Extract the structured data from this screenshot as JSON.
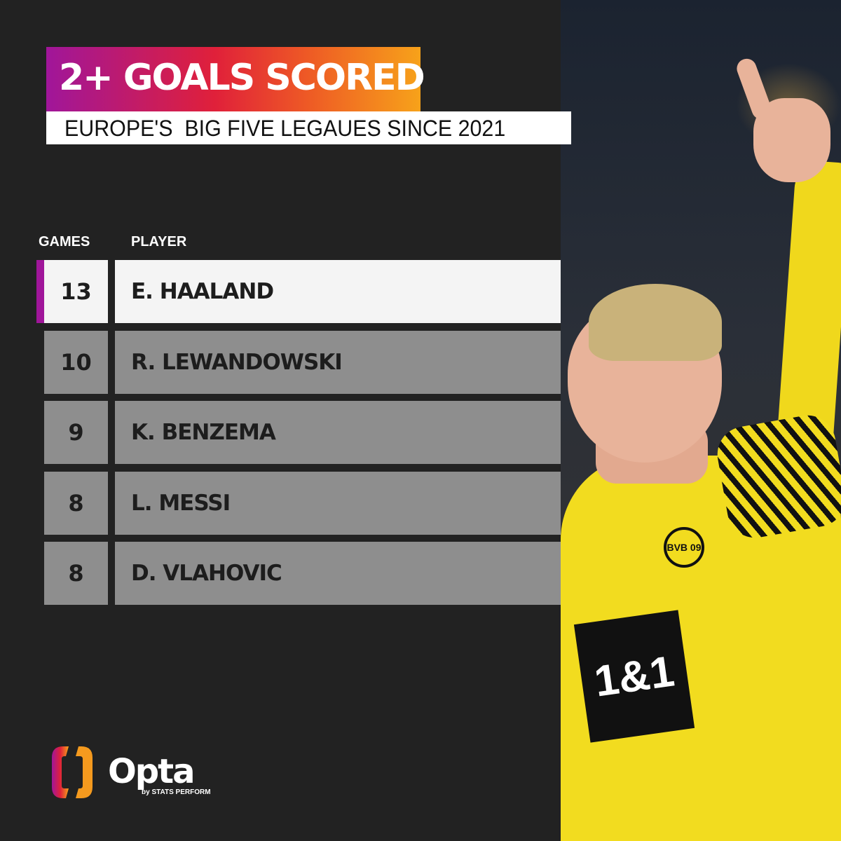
{
  "header": {
    "title": "2+ GOALS SCORED",
    "subtitle": "EUROPE'S  BIG FIVE LEGAUES SINCE 2021",
    "title_gradient": [
      "#a0169a",
      "#e0203a",
      "#f7a21a"
    ]
  },
  "table": {
    "columns": [
      "GAMES",
      "PLAYER"
    ],
    "rows": [
      {
        "games": "13",
        "player": "E. HAALAND",
        "highlighted": true
      },
      {
        "games": "10",
        "player": "R. LEWANDOWSKI"
      },
      {
        "games": "9",
        "player": "K. BENZEMA"
      },
      {
        "games": "8",
        "player": "L. MESSI"
      },
      {
        "games": "8",
        "player": "D. VLAHOVIC"
      }
    ]
  },
  "chart_data": {
    "type": "table",
    "title": "2+ GOALS SCORED",
    "subtitle": "EUROPE'S  BIG FIVE LEGAUES SINCE 2021",
    "columns": [
      "GAMES",
      "PLAYER"
    ],
    "rows": [
      [
        13,
        "E. HAALAND"
      ],
      [
        10,
        "R. LEWANDOWSKI"
      ],
      [
        9,
        "K. BENZEMA"
      ],
      [
        8,
        "L. MESSI"
      ],
      [
        8,
        "D. VLAHOVIC"
      ]
    ]
  },
  "photo": {
    "crest": "BVB 09",
    "sponsor": "1&1"
  },
  "logo": {
    "name": "Opta",
    "tagline": "by STATS PERFORM"
  },
  "colors": {
    "background": "#222222",
    "accent": "#a0169a",
    "row": "#8e8e8e",
    "highlight_row": "#f4f4f4"
  }
}
